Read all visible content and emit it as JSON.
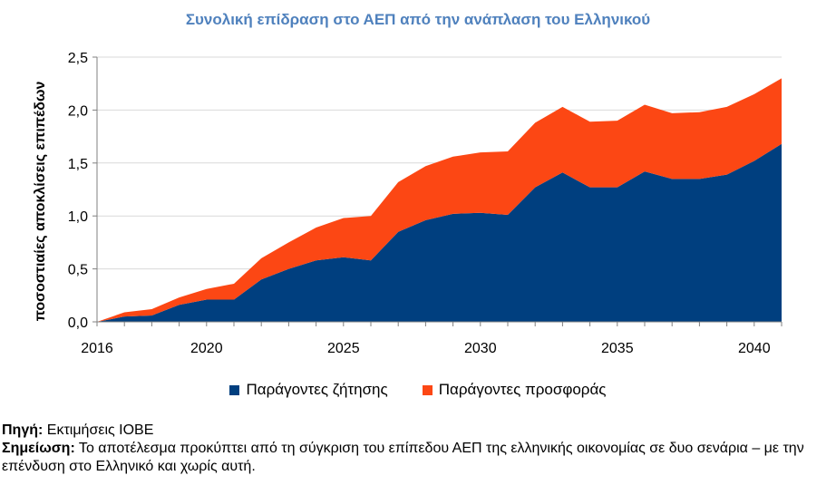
{
  "chart_data": {
    "type": "area",
    "stacked": true,
    "title": "Συνολική επίδραση στο ΑΕΠ από την ανάπλαση του Ελληνικού",
    "xlabel": "",
    "ylabel": "ποσοστιαίες αποκλίσεις επιπέδων",
    "x": [
      2016,
      2017,
      2018,
      2019,
      2020,
      2021,
      2022,
      2023,
      2024,
      2025,
      2026,
      2027,
      2028,
      2029,
      2030,
      2031,
      2032,
      2033,
      2034,
      2035,
      2036,
      2037,
      2038,
      2039,
      2040,
      2041
    ],
    "xlim": [
      2016,
      2041
    ],
    "xticks": [
      "2016",
      "2020",
      "2025",
      "2030",
      "2035",
      "2040"
    ],
    "ylim": [
      0,
      2.5
    ],
    "yticks": [
      "0,0",
      "0,5",
      "1,0",
      "1,5",
      "2,0",
      "2,5"
    ],
    "grid": "horizontal",
    "legend": "bottom",
    "series": [
      {
        "name": "Παράγοντες ζήτησης",
        "color": "#003f7f",
        "values": [
          0.0,
          0.05,
          0.06,
          0.16,
          0.21,
          0.21,
          0.4,
          0.5,
          0.58,
          0.61,
          0.58,
          0.85,
          0.96,
          1.02,
          1.03,
          1.01,
          1.27,
          1.41,
          1.27,
          1.27,
          1.42,
          1.35,
          1.35,
          1.39,
          1.52,
          1.68
        ]
      },
      {
        "name": "Παράγοντες προσφοράς",
        "color": "#fc4714",
        "values": [
          0.0,
          0.04,
          0.06,
          0.07,
          0.1,
          0.15,
          0.2,
          0.25,
          0.31,
          0.37,
          0.42,
          0.47,
          0.51,
          0.54,
          0.57,
          0.6,
          0.61,
          0.62,
          0.62,
          0.63,
          0.63,
          0.62,
          0.63,
          0.64,
          0.63,
          0.62
        ]
      }
    ]
  },
  "notes": {
    "source_label": "Πηγή:",
    "source_text": "Εκτιμήσεις ΙΟΒΕ",
    "note_label": "Σημείωση:",
    "note_text": "Το αποτέλεσμα προκύπτει από τη σύγκριση του επίπεδου ΑΕΠ της ελληνικής οικονομίας σε δυο σενάρια – με την επένδυση στο Ελληνικό και χωρίς αυτή."
  }
}
